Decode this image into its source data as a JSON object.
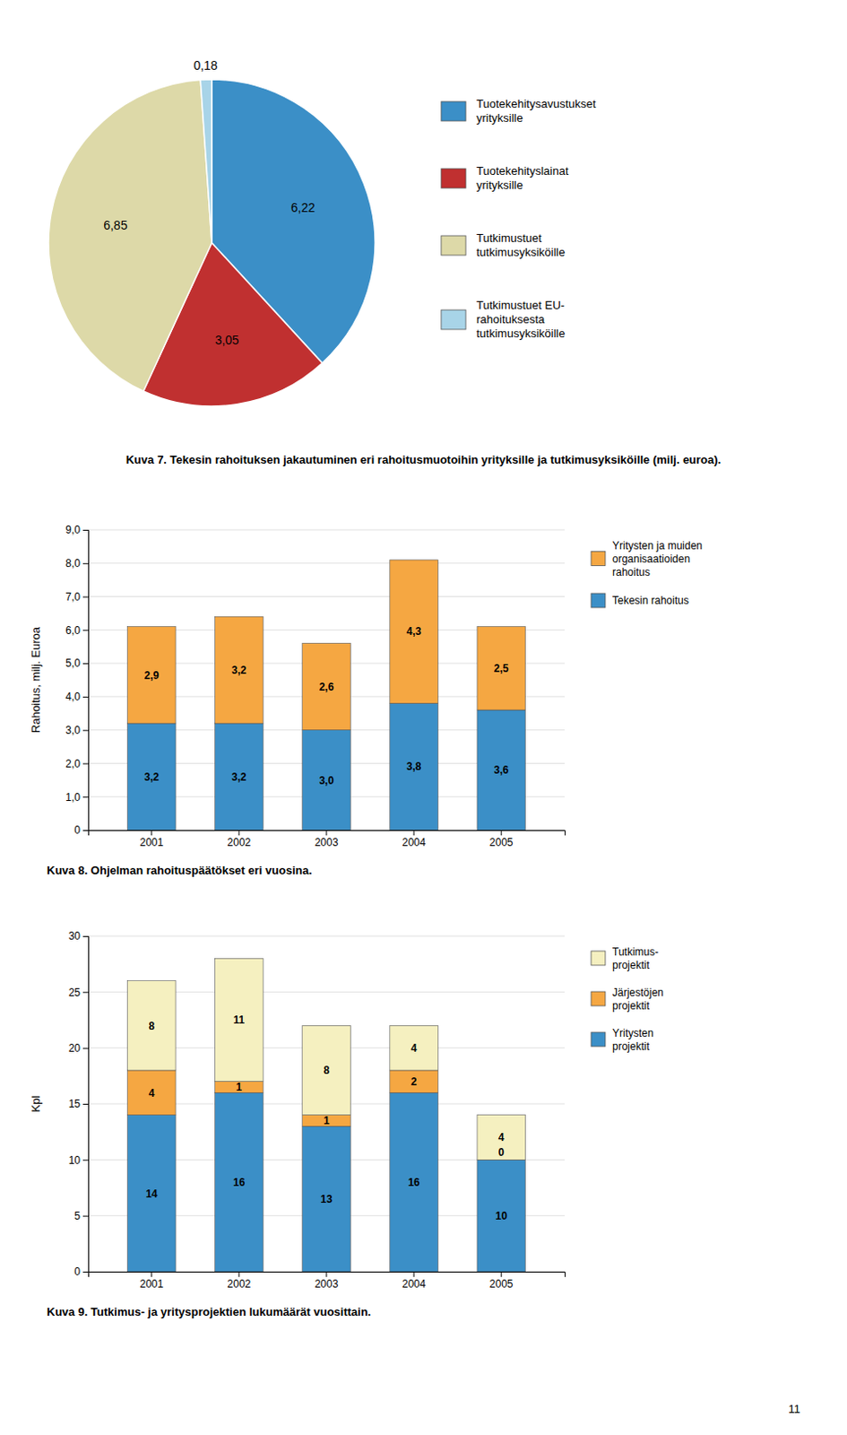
{
  "chart_data": [
    {
      "type": "pie",
      "title": "Kuva 7. Tekesin rahoituksen jakautuminen eri rahoitusmuotoihin yrityksille ja tutkimusyksiköille (milj. euroa).",
      "categories": [
        "Tuotekehitysavustukset\nyrityksille",
        "Tuotekehityslainat\nyrityksille",
        "Tutkimustuet\ntutkimusyksiköille",
        "Tutkimustuet EU-\nrahoituksesta\ntutkimusyksiköille"
      ],
      "values": [
        6.22,
        3.05,
        6.85,
        0.18
      ],
      "value_labels": [
        "6,22",
        "3,05",
        "6,85",
        "0,18"
      ],
      "colors": [
        "#3b8fc7",
        "#c03030",
        "#ddd9a8",
        "#a8d4e8"
      ],
      "data_labels": true,
      "legend": "right"
    },
    {
      "type": "bar",
      "title": "Kuva 8. Ohjelman rahoituspäätökset eri vuosina.",
      "categories": [
        "2001",
        "2002",
        "2003",
        "2004",
        "2005"
      ],
      "series": [
        {
          "name": "Tekesin rahoitus",
          "color": "#3b8fc7",
          "values": [
            3.2,
            3.2,
            3.0,
            3.8,
            3.6
          ],
          "value_labels": [
            "3,2",
            "3,2",
            "3,0",
            "3,8",
            "3,6"
          ]
        },
        {
          "name": "Yritysten ja muiden\norganisaatioiden\nrahoitus",
          "color": "#f5a742",
          "values": [
            2.9,
            3.2,
            2.6,
            4.3,
            2.5
          ],
          "value_labels": [
            "2,9",
            "3,2",
            "2,6",
            "4,3",
            "2,5"
          ]
        }
      ],
      "ylabel": "Rahoitus, milj. Euroa",
      "ylim": [
        0,
        9.0
      ],
      "yticks": [
        0,
        {
          "value": 1.0,
          "label": "1,0"
        },
        {
          "value": 2.0,
          "label": "2,0"
        },
        {
          "value": 3.0,
          "label": "3,0"
        },
        {
          "value": 4.0,
          "label": "4,0"
        },
        {
          "value": 5.0,
          "label": "5,0"
        },
        {
          "value": 6.0,
          "label": "6,0"
        },
        {
          "value": 7.0,
          "label": "7,0"
        },
        {
          "value": 8.0,
          "label": "8,0"
        },
        {
          "value": 9.0,
          "label": "9,0"
        }
      ],
      "stacked": true,
      "grid": true,
      "data_labels": true,
      "legend": "right"
    },
    {
      "type": "bar",
      "title": "Kuva 9. Tutkimus- ja yritysprojektien lukumäärät vuosittain.",
      "categories": [
        "2001",
        "2002",
        "2003",
        "2004",
        "2005"
      ],
      "series": [
        {
          "name": "Yritysten\nprojektit",
          "color": "#3b8fc7",
          "values": [
            14,
            16,
            13,
            16,
            10
          ]
        },
        {
          "name": "Järjestöjen\nprojektit",
          "color": "#f5a742",
          "values": [
            4,
            1,
            1,
            2,
            0
          ]
        },
        {
          "name": "Tutkimus-\nprojektit",
          "color": "#f5f0c0",
          "values": [
            8,
            11,
            8,
            4,
            4
          ]
        }
      ],
      "ylabel": "Kpl",
      "ylim": [
        0,
        30
      ],
      "yticks": [
        0,
        5,
        10,
        15,
        20,
        25,
        30
      ],
      "stacked": true,
      "grid": true,
      "data_labels": true,
      "legend": "right"
    }
  ],
  "page_number": "11"
}
